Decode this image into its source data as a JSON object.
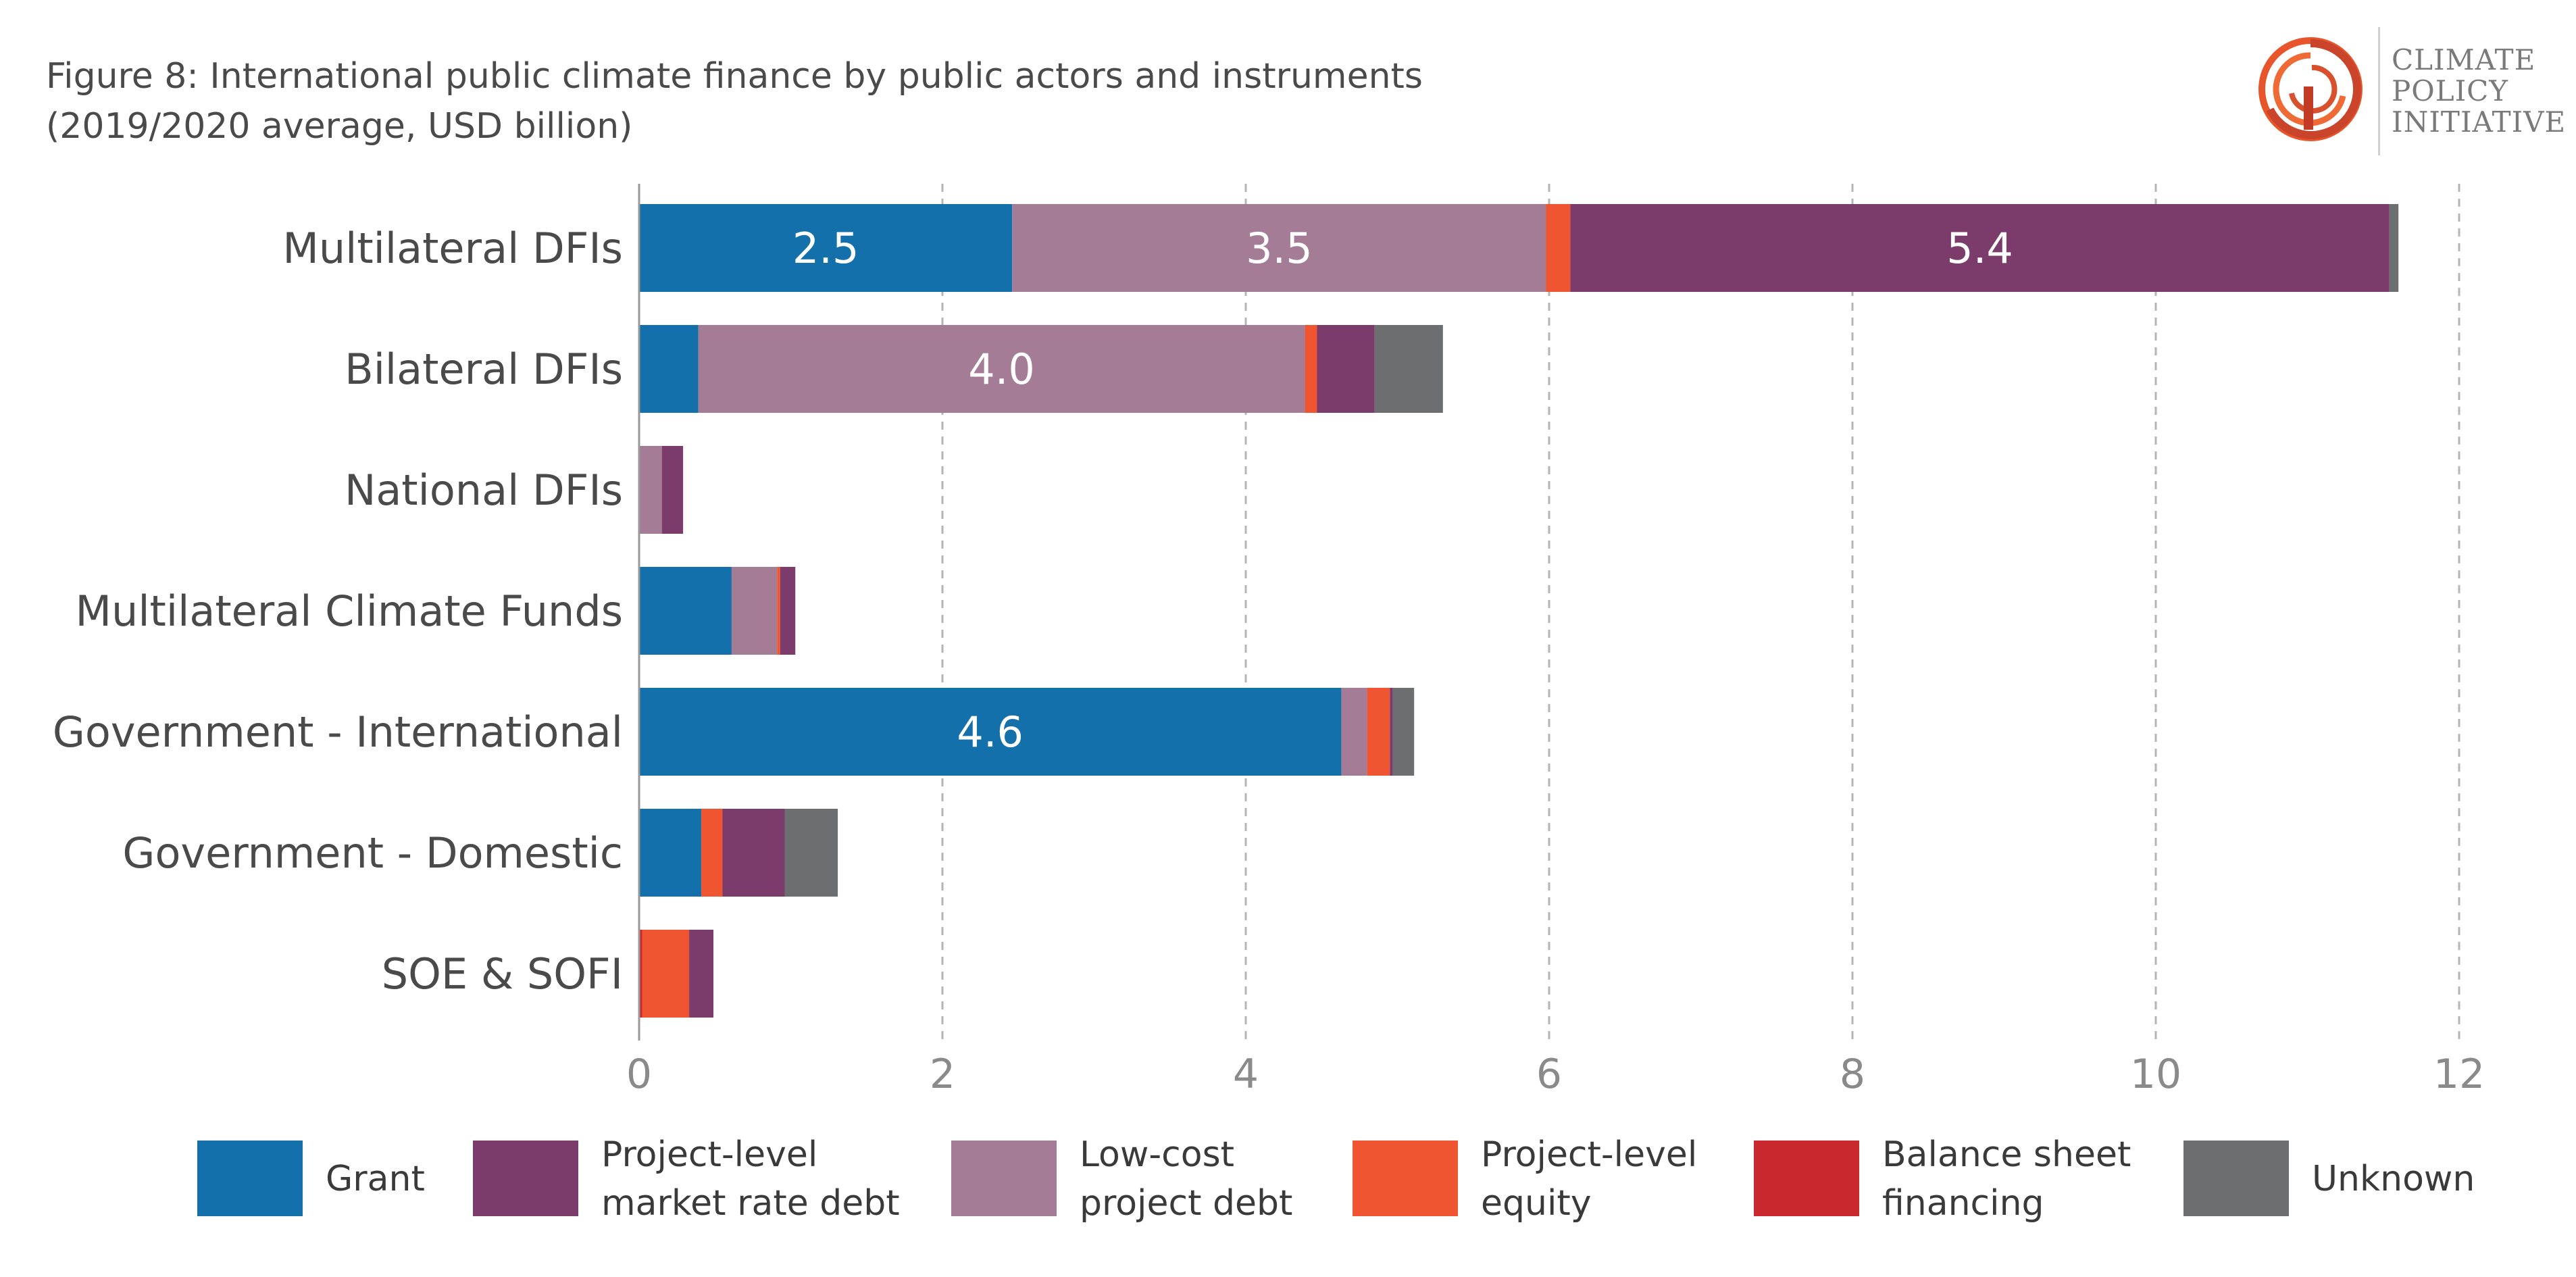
{
  "title_line1": "Figure 8: International public climate finance by public actors and instruments",
  "title_line2": "(2019/2020 average, USD billion)",
  "logo_lines": [
    "CLIMATE",
    "POLICY",
    "INITIATIVE"
  ],
  "logo_icon": "cpi-swirl-icon",
  "colors": {
    "grant": "#1470ab",
    "market_debt": "#7b3b6b",
    "lowcost_debt": "#a57c96",
    "equity": "#ef5530",
    "balance_sheet": "#c8282e",
    "unknown": "#6d6e70",
    "axis_text": "#8a8a8a",
    "category_text": "#4a4a4a"
  },
  "chart_data": {
    "type": "bar",
    "orientation": "horizontal",
    "stacked": true,
    "categories": [
      "Multilateral DFIs",
      "Bilateral DFIs",
      "National DFIs",
      "Multilateral Climate Funds",
      "Government - International",
      "Government - Domestic",
      "SOE & SOFI"
    ],
    "series": [
      {
        "name": "Grant",
        "key": "grant",
        "values": [
          2.46,
          0.39,
          0.0,
          0.61,
          4.63,
          0.41,
          0.0
        ]
      },
      {
        "name": "Balance sheet financing",
        "key": "balance_sheet",
        "values": [
          0.0,
          0.0,
          0.0,
          0.0,
          0.0,
          0.0,
          0.02
        ]
      },
      {
        "name": "Low-cost project debt",
        "key": "lowcost_debt",
        "values": [
          3.52,
          4.0,
          0.15,
          0.3,
          0.17,
          0.0,
          0.0
        ]
      },
      {
        "name": "Project-level equity",
        "key": "equity",
        "values": [
          0.16,
          0.08,
          0.0,
          0.02,
          0.15,
          0.14,
          0.31
        ]
      },
      {
        "name": "Project-level market rate debt",
        "key": "market_debt",
        "values": [
          5.4,
          0.38,
          0.14,
          0.1,
          0.02,
          0.41,
          0.16
        ]
      },
      {
        "name": "Unknown",
        "key": "unknown",
        "values": [
          0.06,
          0.45,
          0.0,
          0.0,
          0.14,
          0.35,
          0.0
        ]
      }
    ],
    "data_labels": [
      {
        "category_index": 0,
        "series_key": "grant",
        "text": "2.5"
      },
      {
        "category_index": 0,
        "series_key": "lowcost_debt",
        "text": "3.5"
      },
      {
        "category_index": 0,
        "series_key": "market_debt",
        "text": "5.4"
      },
      {
        "category_index": 1,
        "series_key": "lowcost_debt",
        "text": "4.0"
      },
      {
        "category_index": 4,
        "series_key": "grant",
        "text": "4.6"
      }
    ],
    "xlim": [
      0,
      12
    ],
    "xticks": [
      "0",
      "2",
      "4",
      "6",
      "8",
      "10",
      "12"
    ],
    "xtick_values": [
      0,
      2,
      4,
      6,
      8,
      10,
      12
    ],
    "grid": true,
    "legend_position": "bottom"
  },
  "legend": [
    {
      "key": "grant",
      "lines": [
        "Grant"
      ]
    },
    {
      "key": "market_debt",
      "lines": [
        "Project-level",
        "market rate debt"
      ]
    },
    {
      "key": "lowcost_debt",
      "lines": [
        "Low-cost",
        "project debt"
      ]
    },
    {
      "key": "equity",
      "lines": [
        "Project-level",
        "equity"
      ]
    },
    {
      "key": "balance_sheet",
      "lines": [
        "Balance sheet",
        "financing"
      ]
    },
    {
      "key": "unknown",
      "lines": [
        "Unknown"
      ]
    }
  ]
}
